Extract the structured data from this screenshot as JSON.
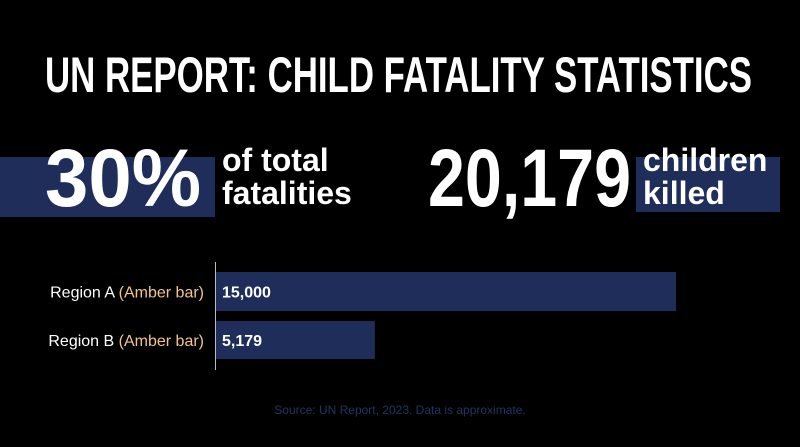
{
  "chart_data": {
    "type": "bar",
    "orientation": "horizontal",
    "title": "UN REPORT: CHILD FATALITY STATISTICS",
    "stats": [
      {
        "value": "30%",
        "lines": [
          "of total",
          "fatalities"
        ]
      },
      {
        "value": "20,179",
        "lines": [
          "children",
          "killed"
        ]
      }
    ],
    "categories": [
      "Region A",
      "Region B"
    ],
    "category_notes": [
      "(Amber bar)",
      "(Amber bar)"
    ],
    "values": [
      15000,
      5179
    ],
    "value_labels": [
      "15,000",
      "5,179"
    ],
    "color": "#1f2d5a",
    "note_color": "#f2c48a",
    "source": "Source: UN Report, 2023. Data is approximate."
  }
}
